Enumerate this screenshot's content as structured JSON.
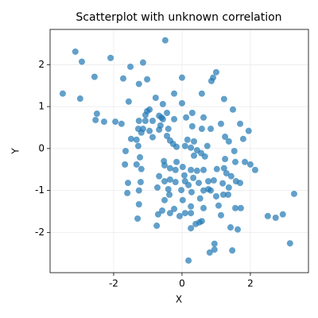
{
  "chart_data": {
    "type": "scatter",
    "title": "Scatterplot with unknown correlation",
    "x_label": "X",
    "y_label": "Y",
    "color": "#1f77b4",
    "grid": true,
    "xlim": [
      -3.86,
      3.7
    ],
    "ylim": [
      -2.96,
      2.84
    ],
    "xticks": [
      -2,
      0,
      2
    ],
    "yticks": [
      -2,
      -1,
      0,
      1,
      2
    ],
    "x": [
      -3.49,
      -3.12,
      -2.93,
      -2.98,
      -2.56,
      -2.49,
      -2.53,
      -2.28,
      -2.09,
      -1.95,
      -1.77,
      -1.72,
      -1.51,
      -1.14,
      -1.26,
      -1.02,
      -1.56,
      -0.49,
      0,
      0.91,
      1.0,
      0.86,
      0.58,
      -0.23,
      -0.77,
      1.23,
      0,
      -0.56,
      -0.95,
      -1.02,
      -1.07,
      -1.07,
      -1.26,
      -0.67,
      -0.6,
      -0.56,
      -0.44,
      0.12,
      0.3,
      0.63,
      1.49,
      1.7,
      1.14,
      0.84,
      0.58,
      0.3,
      -0.23,
      -0.86,
      -0.63,
      -1.14,
      -1.28,
      -1.19,
      -0.95,
      -0.67,
      -0.4,
      -0.86,
      -1.33,
      -1.49,
      -1.28,
      -1.23,
      -1.65,
      -1.67,
      -1.33,
      -1.19,
      -0.44,
      -0.35,
      -0.26,
      -0.16,
      0.16,
      0.35,
      0.09,
      0.26,
      0.44,
      0.56,
      0.67,
      0.74,
      1.26,
      1.37,
      1.79,
      1.95,
      1.53,
      1.84,
      2.0,
      2.14,
      1.56,
      1.26,
      1.23,
      1.02,
      1.3,
      1.44,
      1.58,
      1.7,
      1.37,
      1.19,
      0.93,
      0.77,
      0.77,
      0.63,
      0.49,
      0.33,
      0.26,
      0.44,
      0.63,
      0.02,
      -0.19,
      -0.35,
      -0.53,
      -0.51,
      -0.67,
      -0.51,
      -0.35,
      -0.19,
      0.07,
      0.09,
      0.19,
      0.28,
      -0.02,
      -0.4,
      -0.72,
      -1.21,
      -1.58,
      -1.6,
      -1.26,
      -1.26,
      -1.3,
      -0.74,
      -0.7,
      -0.58,
      -0.35,
      -0.23,
      -0.51,
      -0.37,
      -0.07,
      0.09,
      0.26,
      0.26,
      0.26,
      0.4,
      0.51,
      0.53,
      0.63,
      0.58,
      0.19,
      0.81,
      0.95,
      0.95,
      1.47,
      1.07,
      1.14,
      1.21,
      1.35,
      1.56,
      1.42,
      1.63,
      1.72,
      2.51,
      2.74,
      2.95,
      3.16,
      3.28,
      1.0,
      0.84,
      0.35,
      -0.16,
      0.02
    ],
    "values": [
      1.31,
      2.31,
      2.07,
      1.19,
      1.71,
      0.83,
      0.68,
      0.64,
      2.16,
      0.64,
      0.59,
      1.67,
      1.95,
      2.05,
      1.54,
      1.65,
      1.12,
      2.58,
      1.69,
      1.69,
      1.82,
      1.61,
      1.31,
      1.31,
      1.21,
      1.18,
      1.08,
      1.06,
      0.93,
      0.89,
      0.8,
      0.66,
      0.66,
      0.78,
      0.74,
      0.7,
      0.85,
      0.74,
      0.85,
      0.74,
      0.93,
      0.59,
      0.59,
      0.47,
      0.47,
      0.53,
      0.7,
      0.66,
      0.55,
      0.47,
      0.47,
      0.38,
      0.42,
      0.45,
      0.47,
      0.27,
      0.21,
      0.23,
      0.06,
      -0.21,
      -0.06,
      -0.38,
      -0.38,
      -0.49,
      0.3,
      0.19,
      0.11,
      0.04,
      0.21,
      0.17,
      0.06,
      0.02,
      -0.04,
      -0.11,
      -0.19,
      0.06,
      0.28,
      0.17,
      0.23,
      0.42,
      -0.06,
      -0.32,
      -0.38,
      -0.51,
      -0.32,
      -0.25,
      -0.47,
      -0.49,
      -0.59,
      -0.66,
      -0.78,
      -0.82,
      -0.93,
      -0.83,
      -0.76,
      -0.78,
      -0.97,
      -1.0,
      -0.82,
      -0.7,
      -0.51,
      -0.53,
      -0.51,
      -0.44,
      -0.51,
      -0.47,
      -0.3,
      -0.4,
      -0.66,
      -0.78,
      -0.74,
      -0.8,
      -0.64,
      -0.78,
      -0.87,
      -1.04,
      -0.99,
      -0.97,
      -0.93,
      -0.8,
      -0.82,
      -1.06,
      -1.0,
      -1.33,
      -1.67,
      -1.84,
      -1.57,
      -1.48,
      -1.54,
      -1.44,
      -1.23,
      -1.1,
      -1.61,
      -1.54,
      -1.38,
      -1.54,
      -1.9,
      -1.8,
      -1.76,
      -1.19,
      -1.42,
      -1.73,
      -2.67,
      -2.48,
      -2.41,
      -2.27,
      -2.43,
      -1.36,
      -1.59,
      -1.1,
      -1.1,
      -1.42,
      -1.88,
      -1.93,
      -1.42,
      -1.61,
      -1.65,
      -1.57,
      -2.26,
      -1.08,
      -1.14,
      -1.0,
      -0.17,
      -0.32,
      -1.23
    ]
  }
}
